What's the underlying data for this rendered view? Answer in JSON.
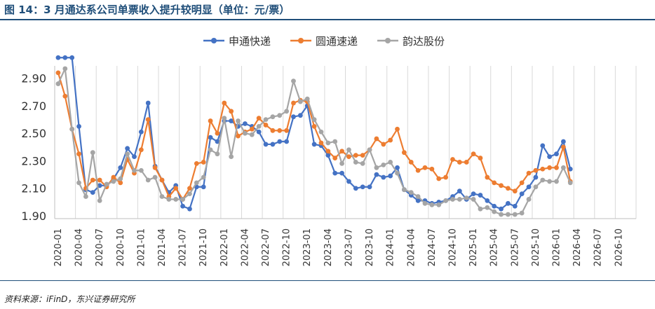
{
  "title": "图 14：3 月通达系公司单票收入提升较明显（单位：元/票）",
  "source": "资料来源：iFinD，东兴证券研究所",
  "chart_data": {
    "type": "line",
    "title": "图 14：3 月通达系公司单票收入提升较明显（单位：元/票）",
    "xlabel": "",
    "ylabel": "",
    "ylim": [
      1.9,
      2.98
    ],
    "yticks": [
      "1.90",
      "2.10",
      "2.30",
      "2.50",
      "2.70",
      "2.90"
    ],
    "yticks_values": [
      1.9,
      2.1,
      2.3,
      2.5,
      2.7,
      2.9
    ],
    "x_ticks": [
      "2020-01",
      "2020-04",
      "2020-07",
      "2020-10",
      "2021-01",
      "2021-04",
      "2021-07",
      "2021-10",
      "2022-01",
      "2022-04",
      "2022-07",
      "2022-10",
      "2023-01",
      "2023-04",
      "2023-07",
      "2023-10",
      "2024-01",
      "2024-04",
      "2024-07",
      "2024-10",
      "2025-01",
      "2025-04",
      "2025-07",
      "2025-10",
      "2026-01",
      "2026-04",
      "2026-07",
      "2026-10"
    ],
    "x_start": "2020-01",
    "x_end": "2026-12",
    "grid": "vertical",
    "legend_position": "top",
    "series": [
      {
        "name": "申通快递",
        "color": "#4472c4",
        "start": "2020-01",
        "values": [
          3.05,
          3.05,
          3.05,
          2.55,
          2.09,
          2.07,
          2.12,
          2.12,
          2.17,
          2.25,
          2.39,
          2.33,
          2.51,
          2.72,
          2.26,
          2.16,
          2.07,
          2.12,
          1.97,
          1.95,
          2.11,
          2.11,
          2.47,
          2.44,
          2.59,
          2.59,
          2.55,
          2.57,
          2.55,
          2.51,
          2.42,
          2.42,
          2.44,
          2.44,
          2.62,
          2.63,
          2.7,
          2.42,
          2.41,
          2.34,
          2.21,
          2.21,
          2.15,
          2.1,
          2.11,
          2.11,
          2.2,
          2.18,
          2.19,
          2.25,
          2.09,
          2.05,
          2.01,
          2.01,
          1.99,
          2.0,
          2.01,
          2.04,
          2.08,
          2.02,
          2.06,
          2.05,
          2.01,
          1.97,
          1.95,
          1.99,
          1.97,
          2.06,
          2.11,
          2.18,
          2.41,
          2.33,
          2.35,
          2.44,
          2.24
        ]
      },
      {
        "name": "圆通速递",
        "color": "#ed7d31",
        "start": "2020-01",
        "values": [
          2.94,
          2.77,
          2.53,
          2.35,
          2.1,
          2.16,
          2.16,
          2.11,
          2.18,
          2.14,
          2.31,
          2.21,
          2.38,
          2.6,
          2.25,
          2.16,
          2.04,
          2.1,
          2.02,
          2.1,
          2.28,
          2.29,
          2.59,
          2.5,
          2.72,
          2.66,
          2.48,
          2.51,
          2.53,
          2.61,
          2.56,
          2.52,
          2.52,
          2.52,
          2.72,
          2.74,
          2.73,
          2.55,
          2.43,
          2.37,
          2.32,
          2.37,
          2.33,
          2.34,
          2.34,
          2.38,
          2.46,
          2.42,
          2.45,
          2.53,
          2.36,
          2.29,
          2.23,
          2.25,
          2.24,
          2.17,
          2.18,
          2.31,
          2.29,
          2.29,
          2.35,
          2.32,
          2.18,
          2.14,
          2.12,
          2.1,
          2.08,
          2.14,
          2.21,
          2.23,
          2.24,
          2.25,
          2.25,
          2.4,
          2.15
        ]
      },
      {
        "name": "韵达股份",
        "color": "#a5a5a5",
        "start": "2020-01",
        "values": [
          2.86,
          2.97,
          2.53,
          2.14,
          2.04,
          2.36,
          2.01,
          2.13,
          2.15,
          2.17,
          2.35,
          2.23,
          2.23,
          2.16,
          2.18,
          2.04,
          2.02,
          2.02,
          2.02,
          2.06,
          2.14,
          2.18,
          2.38,
          2.35,
          2.61,
          2.33,
          2.59,
          2.5,
          2.49,
          2.55,
          2.6,
          2.62,
          2.63,
          2.66,
          2.88,
          2.73,
          2.75,
          2.6,
          2.51,
          2.43,
          2.44,
          2.28,
          2.38,
          2.29,
          2.28,
          2.38,
          2.25,
          2.27,
          2.29,
          2.21,
          2.09,
          2.07,
          2.04,
          1.99,
          1.98,
          1.98,
          2.01,
          2.02,
          2.02,
          2.03,
          2.02,
          1.95,
          1.96,
          1.93,
          1.91,
          1.91,
          1.91,
          1.92,
          2.02,
          2.11,
          2.16,
          2.15,
          2.15,
          2.25,
          2.14
        ]
      }
    ]
  }
}
